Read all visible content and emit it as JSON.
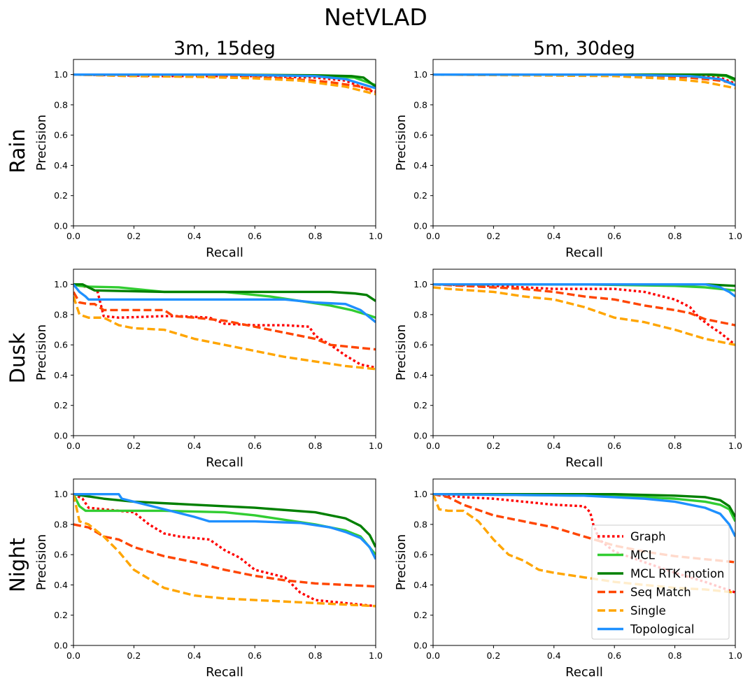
{
  "figure": {
    "title": "NetVLAD",
    "column_titles": [
      "3m, 15deg",
      "5m, 30deg"
    ],
    "row_labels": [
      "Rain",
      "Dusk",
      "Night"
    ]
  },
  "legend": {
    "placement": "lower-right of Night / 5m, 30deg panel",
    "entries": [
      {
        "name": "Graph",
        "color": "#ff0000",
        "style": "dotted"
      },
      {
        "name": "MCL",
        "color": "#32cd32",
        "style": "solid"
      },
      {
        "name": "MCL RTK motion",
        "color": "#008000",
        "style": "solid"
      },
      {
        "name": "Seq Match",
        "color": "#ff4500",
        "style": "dashed"
      },
      {
        "name": "Single",
        "color": "#ffa500",
        "style": "dashed"
      },
      {
        "name": "Topological",
        "color": "#1e90ff",
        "style": "solid"
      }
    ]
  },
  "chart_data": [
    {
      "type": "line",
      "row": "Rain",
      "column": "3m, 15deg",
      "xlabel": "Recall",
      "ylabel": "Precision",
      "xlim": [
        0,
        1
      ],
      "ylim": [
        0,
        1.1
      ],
      "xticks": [
        "0.0",
        "0.2",
        "0.4",
        "0.6",
        "0.8",
        "1.0"
      ],
      "yticks": [
        "0.0",
        "0.2",
        "0.4",
        "0.6",
        "0.8",
        "1.0"
      ],
      "series": [
        {
          "name": "Graph",
          "x": [
            0,
            0.3,
            0.6,
            0.8,
            0.9,
            1.0
          ],
          "y": [
            1.0,
            0.99,
            0.99,
            0.98,
            0.96,
            0.88
          ]
        },
        {
          "name": "MCL",
          "x": [
            0,
            0.5,
            0.8,
            0.93,
            1.0
          ],
          "y": [
            1.0,
            1.0,
            0.99,
            0.98,
            0.93
          ]
        },
        {
          "name": "MCL RTK motion",
          "x": [
            0,
            0.5,
            0.8,
            0.92,
            0.96,
            1.0
          ],
          "y": [
            1.0,
            1.0,
            0.995,
            0.99,
            0.98,
            0.92
          ]
        },
        {
          "name": "Seq Match",
          "x": [
            0,
            0.2,
            0.5,
            0.7,
            0.85,
            0.95,
            1.0
          ],
          "y": [
            1.0,
            0.99,
            0.985,
            0.975,
            0.95,
            0.92,
            0.89
          ]
        },
        {
          "name": "Single",
          "x": [
            0,
            0.2,
            0.4,
            0.6,
            0.75,
            0.9,
            1.0
          ],
          "y": [
            1.0,
            0.99,
            0.985,
            0.975,
            0.96,
            0.92,
            0.87
          ]
        },
        {
          "name": "Topological",
          "x": [
            0,
            0.5,
            0.8,
            0.9,
            0.95,
            1.0
          ],
          "y": [
            1.0,
            1.0,
            0.99,
            0.97,
            0.94,
            0.91
          ]
        }
      ]
    },
    {
      "type": "line",
      "row": "Rain",
      "column": "5m, 30deg",
      "xlabel": "Recall",
      "ylabel": "Precision",
      "xlim": [
        0,
        1
      ],
      "ylim": [
        0,
        1.1
      ],
      "xticks": [
        "0.0",
        "0.2",
        "0.4",
        "0.6",
        "0.8",
        "1.0"
      ],
      "yticks": [
        "0.0",
        "0.2",
        "0.4",
        "0.6",
        "0.8",
        "1.0"
      ],
      "series": [
        {
          "name": "Graph",
          "x": [
            0,
            0.5,
            0.8,
            0.95,
            1.0
          ],
          "y": [
            1.0,
            1.0,
            0.995,
            0.98,
            0.94
          ]
        },
        {
          "name": "MCL",
          "x": [
            0,
            0.6,
            0.9,
            0.97,
            1.0
          ],
          "y": [
            1.0,
            1.0,
            1.0,
            0.99,
            0.96
          ]
        },
        {
          "name": "MCL RTK motion",
          "x": [
            0,
            0.6,
            0.92,
            0.97,
            1.0
          ],
          "y": [
            1.0,
            1.0,
            1.0,
            0.995,
            0.97
          ]
        },
        {
          "name": "Seq Match",
          "x": [
            0,
            0.4,
            0.7,
            0.85,
            0.95,
            1.0
          ],
          "y": [
            1.0,
            0.995,
            0.99,
            0.98,
            0.96,
            0.94
          ]
        },
        {
          "name": "Single",
          "x": [
            0,
            0.3,
            0.6,
            0.8,
            0.9,
            1.0
          ],
          "y": [
            1.0,
            0.995,
            0.99,
            0.97,
            0.95,
            0.91
          ]
        },
        {
          "name": "Topological",
          "x": [
            0,
            0.6,
            0.85,
            0.95,
            1.0
          ],
          "y": [
            1.0,
            1.0,
            0.99,
            0.97,
            0.93
          ]
        }
      ]
    },
    {
      "type": "line",
      "row": "Dusk",
      "column": "3m, 15deg",
      "xlabel": "Recall",
      "ylabel": "Precision",
      "xlim": [
        0,
        1
      ],
      "ylim": [
        0,
        1.1
      ],
      "xticks": [
        "0.0",
        "0.2",
        "0.4",
        "0.6",
        "0.8",
        "1.0"
      ],
      "yticks": [
        "0.0",
        "0.2",
        "0.4",
        "0.6",
        "0.8",
        "1.0"
      ],
      "series": [
        {
          "name": "Graph",
          "x": [
            0,
            0.05,
            0.08,
            0.1,
            0.15,
            0.3,
            0.35,
            0.45,
            0.5,
            0.6,
            0.7,
            0.78,
            0.8,
            0.85,
            0.9,
            0.95,
            1.0
          ],
          "y": [
            1.0,
            0.98,
            0.95,
            0.79,
            0.78,
            0.79,
            0.79,
            0.78,
            0.74,
            0.73,
            0.73,
            0.72,
            0.66,
            0.6,
            0.53,
            0.47,
            0.45
          ]
        },
        {
          "name": "MCL",
          "x": [
            0,
            0.02,
            0.05,
            0.15,
            0.3,
            0.5,
            0.65,
            0.75,
            0.85,
            0.92,
            0.97,
            1.0
          ],
          "y": [
            1.0,
            0.99,
            0.985,
            0.98,
            0.95,
            0.95,
            0.92,
            0.89,
            0.86,
            0.83,
            0.8,
            0.78
          ]
        },
        {
          "name": "MCL RTK motion",
          "x": [
            0,
            0.03,
            0.07,
            0.3,
            0.5,
            0.85,
            0.93,
            0.97,
            1.0
          ],
          "y": [
            1.0,
            1.0,
            0.96,
            0.95,
            0.95,
            0.95,
            0.94,
            0.93,
            0.89
          ]
        },
        {
          "name": "Seq Match",
          "x": [
            0,
            0.02,
            0.05,
            0.07,
            0.1,
            0.2,
            0.3,
            0.33,
            0.4,
            0.5,
            0.6,
            0.7,
            0.8,
            0.85,
            0.9,
            1.0
          ],
          "y": [
            0.95,
            0.88,
            0.87,
            0.87,
            0.83,
            0.83,
            0.83,
            0.79,
            0.78,
            0.76,
            0.72,
            0.68,
            0.64,
            0.6,
            0.59,
            0.57
          ]
        },
        {
          "name": "Single",
          "x": [
            0,
            0.02,
            0.05,
            0.1,
            0.15,
            0.2,
            0.3,
            0.35,
            0.4,
            0.5,
            0.6,
            0.7,
            0.8,
            0.9,
            1.0
          ],
          "y": [
            0.92,
            0.8,
            0.78,
            0.78,
            0.73,
            0.71,
            0.7,
            0.67,
            0.64,
            0.6,
            0.56,
            0.52,
            0.49,
            0.46,
            0.44
          ]
        },
        {
          "name": "Topological",
          "x": [
            0,
            0.02,
            0.04,
            0.05,
            0.1,
            0.3,
            0.5,
            0.7,
            0.8,
            0.9,
            0.95,
            1.0
          ],
          "y": [
            1.0,
            0.95,
            0.92,
            0.9,
            0.9,
            0.9,
            0.9,
            0.9,
            0.88,
            0.87,
            0.83,
            0.75
          ]
        }
      ]
    },
    {
      "type": "line",
      "row": "Dusk",
      "column": "5m, 30deg",
      "xlabel": "Recall",
      "ylabel": "Precision",
      "xlim": [
        0,
        1
      ],
      "ylim": [
        0,
        1.1
      ],
      "xticks": [
        "0.0",
        "0.2",
        "0.4",
        "0.6",
        "0.8",
        "1.0"
      ],
      "yticks": [
        "0.0",
        "0.2",
        "0.4",
        "0.6",
        "0.8",
        "1.0"
      ],
      "series": [
        {
          "name": "Graph",
          "x": [
            0,
            0.2,
            0.3,
            0.4,
            0.6,
            0.7,
            0.8,
            0.85,
            0.88,
            0.92,
            0.95,
            1.0
          ],
          "y": [
            1.0,
            0.99,
            0.98,
            0.97,
            0.97,
            0.95,
            0.9,
            0.85,
            0.78,
            0.72,
            0.68,
            0.6
          ]
        },
        {
          "name": "MCL",
          "x": [
            0,
            0.5,
            0.8,
            0.9,
            0.95,
            1.0
          ],
          "y": [
            1.0,
            1.0,
            0.99,
            0.98,
            0.97,
            0.96
          ]
        },
        {
          "name": "MCL RTK motion",
          "x": [
            0,
            0.5,
            0.9,
            1.0
          ],
          "y": [
            1.0,
            1.0,
            1.0,
            0.99
          ]
        },
        {
          "name": "Seq Match",
          "x": [
            0,
            0.3,
            0.4,
            0.5,
            0.6,
            0.7,
            0.8,
            0.85,
            0.9,
            0.95,
            1.0
          ],
          "y": [
            1.0,
            0.97,
            0.95,
            0.92,
            0.9,
            0.86,
            0.83,
            0.81,
            0.77,
            0.75,
            0.73
          ]
        },
        {
          "name": "Single",
          "x": [
            0,
            0.05,
            0.2,
            0.3,
            0.4,
            0.5,
            0.6,
            0.7,
            0.8,
            0.9,
            1.0
          ],
          "y": [
            0.98,
            0.97,
            0.95,
            0.92,
            0.9,
            0.85,
            0.78,
            0.75,
            0.7,
            0.64,
            0.6
          ]
        },
        {
          "name": "Topological",
          "x": [
            0,
            0.6,
            0.9,
            0.95,
            0.98,
            1.0
          ],
          "y": [
            1.0,
            1.0,
            1.0,
            0.98,
            0.95,
            0.92
          ]
        }
      ]
    },
    {
      "type": "line",
      "row": "Night",
      "column": "3m, 15deg",
      "xlabel": "Recall",
      "ylabel": "Precision",
      "xlim": [
        0,
        1
      ],
      "ylim": [
        0,
        1.1
      ],
      "xticks": [
        "0.0",
        "0.2",
        "0.4",
        "0.6",
        "0.8",
        "1.0"
      ],
      "yticks": [
        "0.0",
        "0.2",
        "0.4",
        "0.6",
        "0.8",
        "1.0"
      ],
      "series": [
        {
          "name": "Graph",
          "x": [
            0,
            0.03,
            0.05,
            0.1,
            0.2,
            0.25,
            0.3,
            0.35,
            0.45,
            0.5,
            0.55,
            0.6,
            0.7,
            0.75,
            0.8,
            0.9,
            1.0
          ],
          "y": [
            1.0,
            0.97,
            0.91,
            0.9,
            0.88,
            0.8,
            0.74,
            0.72,
            0.7,
            0.63,
            0.58,
            0.5,
            0.45,
            0.35,
            0.3,
            0.28,
            0.26
          ]
        },
        {
          "name": "MCL",
          "x": [
            0,
            0.02,
            0.04,
            0.1,
            0.3,
            0.5,
            0.6,
            0.7,
            0.8,
            0.9,
            0.95,
            1.0
          ],
          "y": [
            1.0,
            0.92,
            0.89,
            0.89,
            0.89,
            0.88,
            0.86,
            0.83,
            0.8,
            0.76,
            0.72,
            0.6
          ]
        },
        {
          "name": "MCL RTK motion",
          "x": [
            0,
            0.1,
            0.2,
            0.4,
            0.6,
            0.8,
            0.9,
            0.95,
            0.98,
            1.0
          ],
          "y": [
            1.0,
            0.97,
            0.95,
            0.93,
            0.91,
            0.88,
            0.84,
            0.79,
            0.73,
            0.65
          ]
        },
        {
          "name": "Seq Match",
          "x": [
            0,
            0.05,
            0.1,
            0.15,
            0.2,
            0.3,
            0.4,
            0.5,
            0.6,
            0.7,
            0.8,
            0.9,
            1.0
          ],
          "y": [
            0.8,
            0.78,
            0.72,
            0.7,
            0.65,
            0.59,
            0.55,
            0.5,
            0.46,
            0.43,
            0.41,
            0.4,
            0.39
          ]
        },
        {
          "name": "Single",
          "x": [
            0,
            0.02,
            0.05,
            0.1,
            0.15,
            0.2,
            0.3,
            0.4,
            0.5,
            0.6,
            0.7,
            0.8,
            0.9,
            1.0
          ],
          "y": [
            1.0,
            0.82,
            0.8,
            0.72,
            0.62,
            0.5,
            0.38,
            0.33,
            0.31,
            0.3,
            0.29,
            0.28,
            0.27,
            0.26
          ]
        },
        {
          "name": "Topological",
          "x": [
            0,
            0.15,
            0.16,
            0.3,
            0.4,
            0.45,
            0.6,
            0.75,
            0.85,
            0.9,
            0.95,
            0.98,
            1.0
          ],
          "y": [
            1.0,
            1.0,
            0.97,
            0.9,
            0.85,
            0.82,
            0.82,
            0.81,
            0.78,
            0.75,
            0.71,
            0.65,
            0.57
          ]
        }
      ]
    },
    {
      "type": "line",
      "row": "Night",
      "column": "5m, 30deg",
      "xlabel": "Recall",
      "ylabel": "Precision",
      "xlim": [
        0,
        1
      ],
      "ylim": [
        0,
        1.1
      ],
      "xticks": [
        "0.0",
        "0.2",
        "0.4",
        "0.6",
        "0.8",
        "1.0"
      ],
      "yticks": [
        "0.0",
        "0.2",
        "0.4",
        "0.6",
        "0.8",
        "1.0"
      ],
      "series": [
        {
          "name": "Graph",
          "x": [
            0,
            0.1,
            0.2,
            0.3,
            0.4,
            0.5,
            0.52,
            0.53,
            0.55,
            0.6,
            0.7,
            0.8,
            0.9,
            1.0
          ],
          "y": [
            1.0,
            0.98,
            0.97,
            0.95,
            0.93,
            0.92,
            0.88,
            0.8,
            0.7,
            0.62,
            0.55,
            0.48,
            0.42,
            0.35
          ]
        },
        {
          "name": "MCL",
          "x": [
            0,
            0.5,
            0.7,
            0.8,
            0.9,
            0.95,
            0.98,
            1.0
          ],
          "y": [
            1.0,
            0.99,
            0.98,
            0.97,
            0.95,
            0.93,
            0.9,
            0.82
          ]
        },
        {
          "name": "MCL RTK motion",
          "x": [
            0,
            0.6,
            0.8,
            0.9,
            0.95,
            0.98,
            1.0
          ],
          "y": [
            1.0,
            1.0,
            0.99,
            0.98,
            0.96,
            0.92,
            0.85
          ]
        },
        {
          "name": "Seq Match",
          "x": [
            0,
            0.05,
            0.1,
            0.2,
            0.3,
            0.4,
            0.5,
            0.6,
            0.7,
            0.8,
            0.9,
            1.0
          ],
          "y": [
            1.0,
            0.98,
            0.93,
            0.86,
            0.82,
            0.78,
            0.72,
            0.66,
            0.62,
            0.59,
            0.57,
            0.55
          ]
        },
        {
          "name": "Single",
          "x": [
            0,
            0.02,
            0.05,
            0.1,
            0.15,
            0.2,
            0.25,
            0.3,
            0.35,
            0.4,
            0.5,
            0.6,
            0.7,
            0.8,
            0.9,
            1.0
          ],
          "y": [
            1.0,
            0.9,
            0.89,
            0.89,
            0.82,
            0.7,
            0.6,
            0.56,
            0.5,
            0.48,
            0.45,
            0.42,
            0.4,
            0.38,
            0.37,
            0.35
          ]
        },
        {
          "name": "Topological",
          "x": [
            0,
            0.5,
            0.7,
            0.8,
            0.9,
            0.95,
            0.98,
            1.0
          ],
          "y": [
            1.0,
            0.99,
            0.97,
            0.95,
            0.91,
            0.87,
            0.8,
            0.72
          ]
        }
      ]
    }
  ]
}
